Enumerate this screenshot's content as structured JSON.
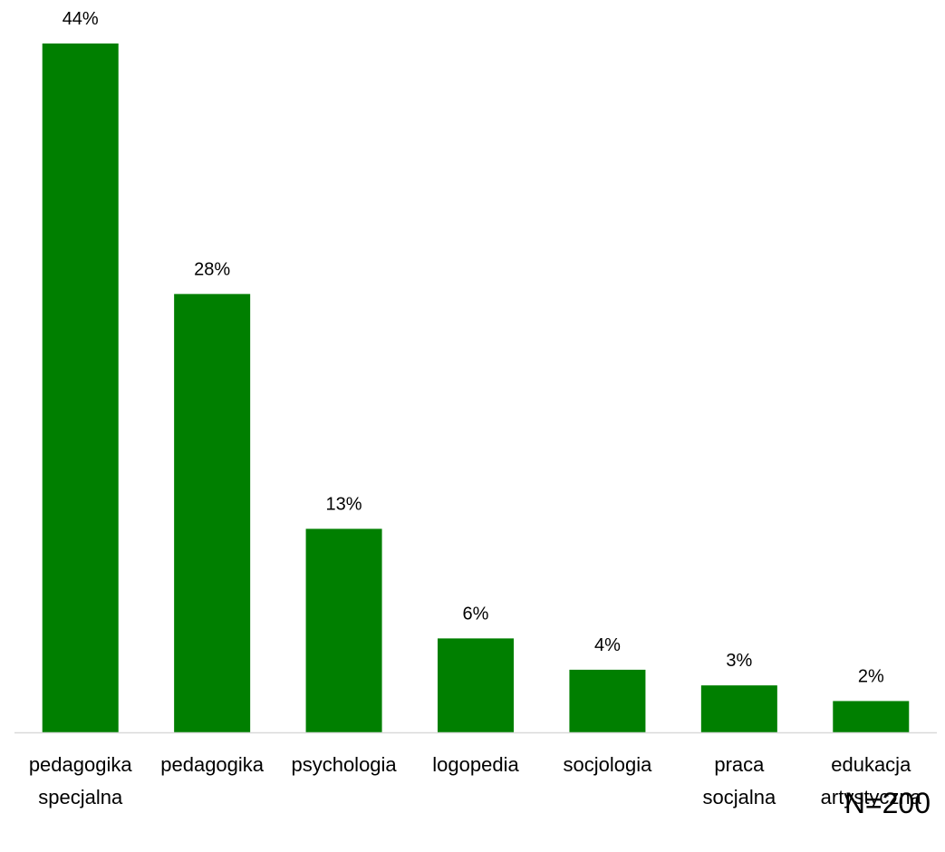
{
  "chart_data": {
    "type": "bar",
    "categories": [
      [
        "pedagogika",
        "specjalna"
      ],
      [
        "pedagogika"
      ],
      [
        "psychologia"
      ],
      [
        "logopedia"
      ],
      [
        "socjologia"
      ],
      [
        "praca",
        "socjalna"
      ],
      [
        "edukacja",
        "artystyczna"
      ]
    ],
    "values": [
      44,
      28,
      13,
      6,
      4,
      3,
      2
    ],
    "value_labels": [
      "44%",
      "28%",
      "13%",
      "6%",
      "4%",
      "3%",
      "2%"
    ],
    "ylim": [
      0,
      44
    ],
    "grid": false,
    "legend": "none",
    "annotation": "N=200"
  },
  "colors": {
    "bar": "#007F00",
    "axis": "#D9D9D9",
    "text": "#000000"
  }
}
